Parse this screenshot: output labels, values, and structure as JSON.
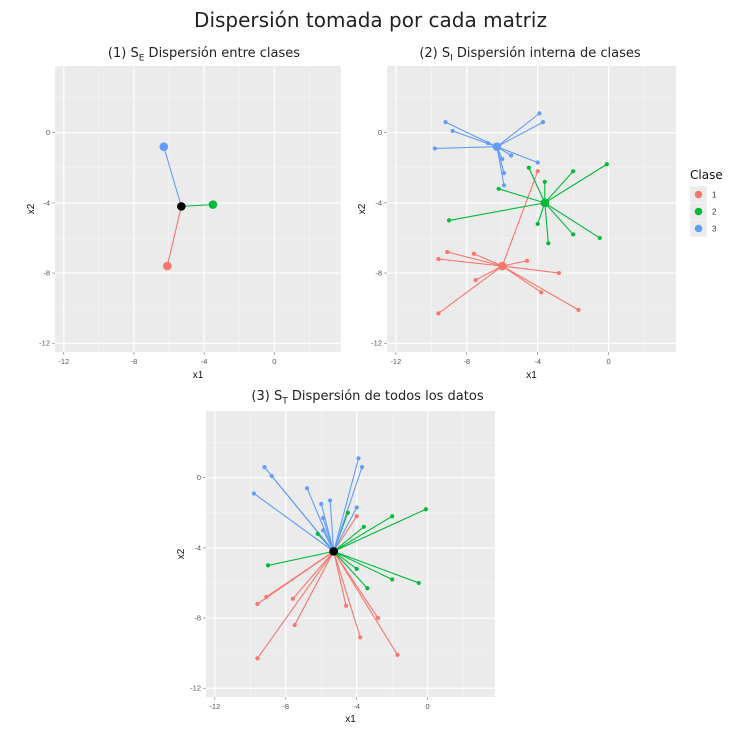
{
  "title": "Dispersión tomada por cada matriz",
  "panels": [
    {
      "prefix": "(1) S",
      "sub": "E",
      "rest": " Dispersión entre clases"
    },
    {
      "prefix": "(2) S",
      "sub": "I",
      "rest": " Dispersión interna de clases"
    },
    {
      "prefix": "(3) S",
      "sub": "T",
      "rest": " Dispersión de todos los datos"
    }
  ],
  "legend": {
    "title": "Clase",
    "items": [
      {
        "label": "1",
        "color": "#F8766D"
      },
      {
        "label": "2",
        "color": "#00BA38"
      },
      {
        "label": "3",
        "color": "#619CFF"
      }
    ]
  },
  "chart_data": [
    {
      "type": "scatter",
      "title": "(1) SE Dispersión entre clases",
      "xlabel": "x1",
      "ylabel": "x2",
      "xticks": [
        -12,
        -8,
        -4,
        0
      ],
      "yticks": [
        0,
        -4,
        -8,
        -12
      ],
      "xlim": [
        -12.5,
        3.8
      ],
      "ylim": [
        -12.5,
        3.8
      ],
      "grid": true,
      "center": {
        "x": -5.3,
        "y": -4.2
      },
      "series": [
        {
          "name": "1",
          "points": [
            {
              "x": -6.1,
              "y": -7.6
            }
          ]
        },
        {
          "name": "2",
          "points": [
            {
              "x": -3.5,
              "y": -4.1
            }
          ]
        },
        {
          "name": "3",
          "points": [
            {
              "x": -6.3,
              "y": -0.8
            }
          ]
        }
      ]
    },
    {
      "type": "scatter",
      "title": "(2) SI Dispersión interna de clases",
      "xlabel": "x1",
      "ylabel": "x2",
      "xticks": [
        -12,
        -8,
        -4,
        0
      ],
      "yticks": [
        0,
        -4,
        -8,
        -12
      ],
      "xlim": [
        -12.5,
        3.8
      ],
      "ylim": [
        -12.5,
        3.8
      ],
      "grid": true,
      "series": [
        {
          "name": "1",
          "centroid": {
            "x": -6.0,
            "y": -7.6
          },
          "points": [
            {
              "x": -9.6,
              "y": -7.2
            },
            {
              "x": -9.1,
              "y": -6.8
            },
            {
              "x": -9.6,
              "y": -10.3
            },
            {
              "x": -7.5,
              "y": -8.4
            },
            {
              "x": -7.6,
              "y": -6.9
            },
            {
              "x": -4.6,
              "y": -7.3
            },
            {
              "x": -3.8,
              "y": -9.1
            },
            {
              "x": -2.8,
              "y": -8.0
            },
            {
              "x": -1.7,
              "y": -10.1
            },
            {
              "x": -4.0,
              "y": -2.2
            }
          ]
        },
        {
          "name": "2",
          "centroid": {
            "x": -3.6,
            "y": -4.0
          },
          "points": [
            {
              "x": -9.0,
              "y": -5.0
            },
            {
              "x": -6.2,
              "y": -3.2
            },
            {
              "x": -4.5,
              "y": -2.0
            },
            {
              "x": -3.6,
              "y": -2.8
            },
            {
              "x": -2.0,
              "y": -2.2
            },
            {
              "x": -0.1,
              "y": -1.8
            },
            {
              "x": -0.5,
              "y": -6.0
            },
            {
              "x": -2.0,
              "y": -5.8
            },
            {
              "x": -4.0,
              "y": -5.2
            },
            {
              "x": -3.4,
              "y": -6.3
            }
          ]
        },
        {
          "name": "3",
          "centroid": {
            "x": -6.3,
            "y": -0.8
          },
          "points": [
            {
              "x": -9.8,
              "y": -0.9
            },
            {
              "x": -9.2,
              "y": 0.6
            },
            {
              "x": -8.8,
              "y": 0.1
            },
            {
              "x": -6.8,
              "y": -0.6
            },
            {
              "x": -5.5,
              "y": -1.3
            },
            {
              "x": -6.0,
              "y": -1.5
            },
            {
              "x": -5.9,
              "y": -2.3
            },
            {
              "x": -4.0,
              "y": -1.7
            },
            {
              "x": -3.9,
              "y": 1.1
            },
            {
              "x": -3.7,
              "y": 0.6
            },
            {
              "x": -5.9,
              "y": -3.0
            }
          ]
        }
      ]
    },
    {
      "type": "scatter",
      "title": "(3) ST Dispersión de todos los datos",
      "xlabel": "x1",
      "ylabel": "x2",
      "xticks": [
        -12,
        -8,
        -4,
        0
      ],
      "yticks": [
        0,
        -4,
        -8,
        -12
      ],
      "xlim": [
        -12.5,
        3.8
      ],
      "ylim": [
        -12.5,
        3.8
      ],
      "grid": true,
      "center": {
        "x": -5.3,
        "y": -4.2
      },
      "series": [
        {
          "name": "1",
          "points": [
            {
              "x": -9.6,
              "y": -7.2
            },
            {
              "x": -9.1,
              "y": -6.8
            },
            {
              "x": -9.6,
              "y": -10.3
            },
            {
              "x": -7.5,
              "y": -8.4
            },
            {
              "x": -7.6,
              "y": -6.9
            },
            {
              "x": -4.6,
              "y": -7.3
            },
            {
              "x": -3.8,
              "y": -9.1
            },
            {
              "x": -2.8,
              "y": -8.0
            },
            {
              "x": -1.7,
              "y": -10.1
            },
            {
              "x": -4.0,
              "y": -2.2
            }
          ]
        },
        {
          "name": "2",
          "points": [
            {
              "x": -9.0,
              "y": -5.0
            },
            {
              "x": -6.2,
              "y": -3.2
            },
            {
              "x": -4.5,
              "y": -2.0
            },
            {
              "x": -3.6,
              "y": -2.8
            },
            {
              "x": -2.0,
              "y": -2.2
            },
            {
              "x": -0.1,
              "y": -1.8
            },
            {
              "x": -0.5,
              "y": -6.0
            },
            {
              "x": -2.0,
              "y": -5.8
            },
            {
              "x": -4.0,
              "y": -5.2
            },
            {
              "x": -3.4,
              "y": -6.3
            }
          ]
        },
        {
          "name": "3",
          "points": [
            {
              "x": -9.8,
              "y": -0.9
            },
            {
              "x": -9.2,
              "y": 0.6
            },
            {
              "x": -8.8,
              "y": 0.1
            },
            {
              "x": -6.8,
              "y": -0.6
            },
            {
              "x": -5.5,
              "y": -1.3
            },
            {
              "x": -6.0,
              "y": -1.5
            },
            {
              "x": -5.9,
              "y": -2.3
            },
            {
              "x": -4.0,
              "y": -1.7
            },
            {
              "x": -3.9,
              "y": 1.1
            },
            {
              "x": -3.7,
              "y": 0.6
            },
            {
              "x": -5.9,
              "y": -3.0
            }
          ]
        }
      ]
    }
  ]
}
